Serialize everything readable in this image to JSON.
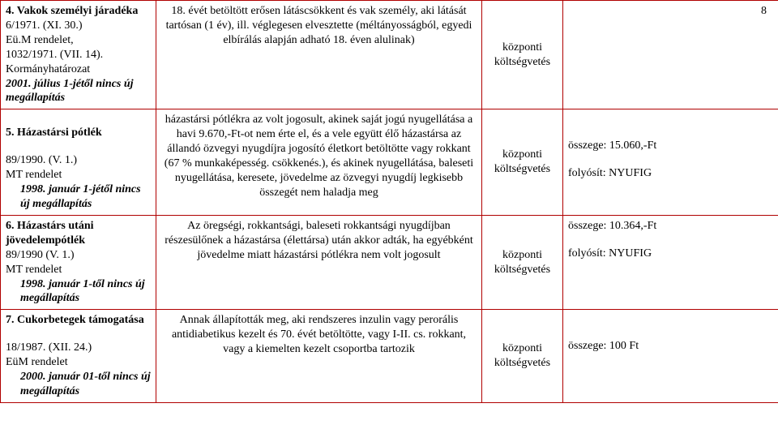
{
  "pageNumber": "8",
  "rows": [
    {
      "col1": {
        "title": "4. Vakok személyi járadéka",
        "lines": [
          {
            "text": "6/1971. (XI. 30.)"
          },
          {
            "text": "Eü.M rendelet,"
          },
          {
            "text": "1032/1971. (VII. 14)."
          },
          {
            "text": "Kormányhatározat"
          },
          {
            "text": "2001. július 1-jétől nincs új megállapítás",
            "cls": "bolditalic"
          }
        ]
      },
      "col2": {
        "lines": [
          {
            "text": "18. évét betöltött erősen látáscsökkent és vak személy, aki látását tartósan (1 év), ill. véglegesen elvesztette (méltányosságból, egyedi elbírálás alapján adható 18. éven alulinak)",
            "cls": "center"
          }
        ]
      },
      "col3": {
        "text": "központi költségvetés"
      },
      "col4": {
        "lines": []
      }
    },
    {
      "col1": {
        "title": "5. Házastársi pótlék",
        "titleSpacerBefore": true,
        "lines": [
          {
            "spacer": true
          },
          {
            "text": "89/1990. (V. 1.)"
          },
          {
            "text": "MT rendelet"
          },
          {
            "text": "1998. január 1-jétől nincs új megállapítás",
            "cls": "bolditalic indent"
          }
        ]
      },
      "col2": {
        "lines": [
          {
            "text": "házastársi pótlékra az volt jogosult, akinek saját jogú nyugellátása a havi 9.670,-Ft-ot nem érte el, és a vele együtt élő házastársa az állandó özvegyi nyugdíjra jogosító életkort betöltötte vagy rokkant (67 % munkaképesség. csökkenés.), és akinek nyugellátása, baleseti nyugellátása, keresete, jövedelme az özvegyi nyugdíj legkisebb összegét nem haladja meg",
            "cls": "center"
          }
        ]
      },
      "col3": {
        "text": "központi költségvetés"
      },
      "col4": {
        "lines": [
          {
            "spacer": true
          },
          {
            "spacer": true
          },
          {
            "text": "összege: 15.060,-Ft"
          },
          {
            "spacer": true
          },
          {
            "text": "folyósít: NYUFIG"
          }
        ]
      }
    },
    {
      "col1": {
        "title": "6. Házastárs utáni jövedelempótlék",
        "lines": [
          {
            "text": "89/1990 (V. 1.)"
          },
          {
            "text": "MT rendelet"
          },
          {
            "text": "1998. január 1-től nincs új megállapítás",
            "cls": "bolditalic indent"
          }
        ]
      },
      "col2": {
        "lines": [
          {
            "text": "Az öregségi, rokkantsági, baleseti rokkantsági nyugdíjban részesülőnek a házastársa (élettársa) után akkor adták, ha egyébként jövedelme miatt házastársi pótlékra nem volt jogosult",
            "cls": "center"
          }
        ]
      },
      "col3": {
        "text": "központi költségvetés"
      },
      "col4": {
        "lines": [
          {
            "text": "összege: 10.364,-Ft"
          },
          {
            "spacer": true
          },
          {
            "text": "folyósít: NYUFIG"
          }
        ]
      }
    },
    {
      "col1": {
        "title": "7. Cukorbetegek támogatása",
        "lines": [
          {
            "spacer": true
          },
          {
            "text": "18/1987. (XII. 24.)"
          },
          {
            "text": "EüM rendelet"
          },
          {
            "text": "2000. január 01-től nincs új megállapítás",
            "cls": "bolditalic indent"
          }
        ]
      },
      "col2": {
        "lines": [
          {
            "text": "Annak állapították meg, aki rendszeres inzulin vagy perorális antidiabetikus kezelt és 70. évét betöltötte, vagy I-II. cs. rokkant, vagy a kiemelten kezelt csoportba tartozik",
            "cls": "center"
          }
        ]
      },
      "col3": {
        "text": "központi költségvetés"
      },
      "col4": {
        "lines": [
          {
            "spacer": true
          },
          {
            "spacer": true
          },
          {
            "text": "összege: 100 Ft"
          }
        ]
      }
    }
  ]
}
